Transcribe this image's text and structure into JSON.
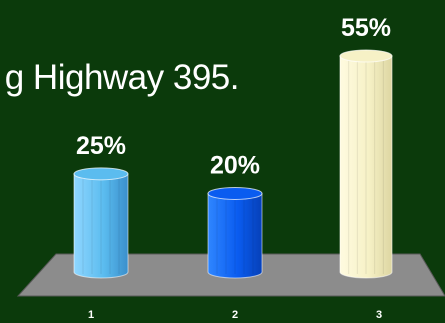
{
  "slide": {
    "question_fragment": "g Highway 395."
  },
  "chart_data": {
    "type": "bar",
    "style": "3d-cylinder",
    "categories": [
      "1",
      "2",
      "3"
    ],
    "values": [
      25,
      20,
      55
    ],
    "data_labels": [
      "25%",
      "20%",
      "55%"
    ],
    "ylim": [
      0,
      55
    ],
    "grid": false,
    "legend": "none",
    "colors": {
      "background": "#0b3a0b",
      "floor": "#8c8c8c",
      "bars": [
        "#5bbcef",
        "#0a5cf0",
        "#f6f1c6"
      ],
      "labels": "#ffffff"
    }
  }
}
